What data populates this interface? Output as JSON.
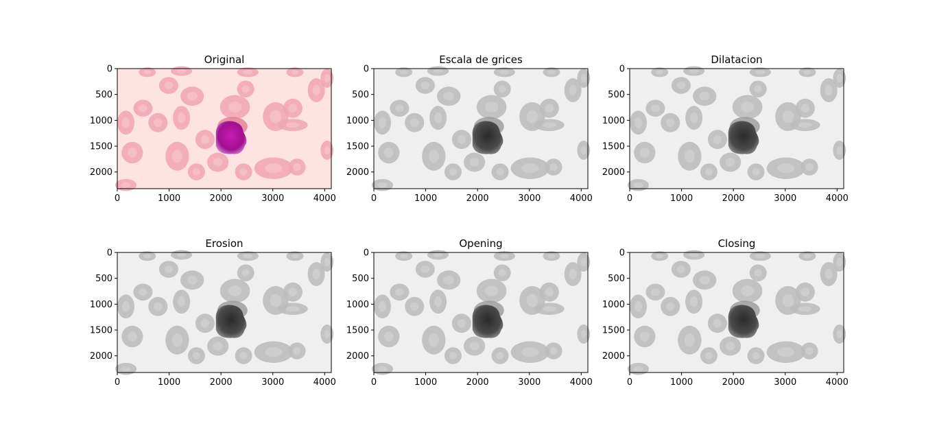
{
  "figure": {
    "panels": [
      {
        "title": "Original",
        "style": "color"
      },
      {
        "title": "Escala de grices",
        "style": "gray"
      },
      {
        "title": "Dilatacion",
        "style": "gray"
      },
      {
        "title": "Erosion",
        "style": "gray"
      },
      {
        "title": "Opening",
        "style": "gray"
      },
      {
        "title": "Closing",
        "style": "gray"
      }
    ],
    "x_ticks": [
      "0",
      "1000",
      "2000",
      "3000",
      "4000"
    ],
    "y_ticks": [
      "0",
      "500",
      "1000",
      "1500",
      "2000"
    ],
    "x_tick_values": [
      0,
      1000,
      2000,
      3000,
      4000
    ],
    "y_tick_values": [
      0,
      500,
      1000,
      1500,
      2000
    ],
    "image_width": 4128,
    "image_height": 2322,
    "colors": {
      "original_background": "#fde3e2",
      "original_cell": "#f0a6b2",
      "original_nucleus": "#b0139f",
      "gray_background": "#efefef",
      "gray_cell": "#bdbdbd",
      "gray_nucleus": "#3a3a3a"
    }
  }
}
